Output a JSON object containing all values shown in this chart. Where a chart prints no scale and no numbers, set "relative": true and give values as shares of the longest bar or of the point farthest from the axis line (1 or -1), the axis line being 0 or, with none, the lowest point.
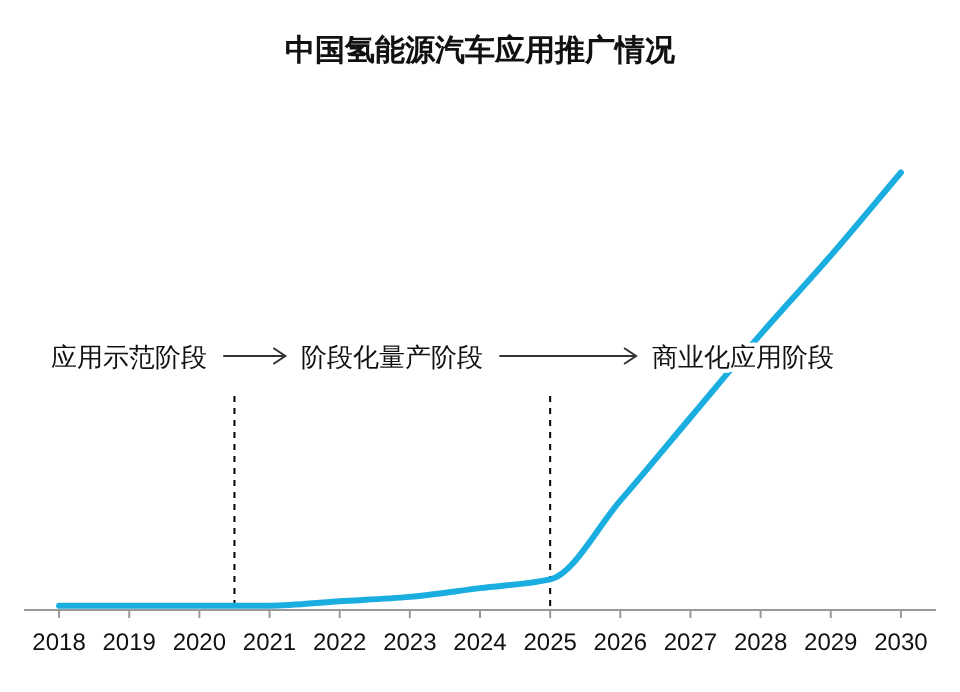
{
  "chart_data": {
    "type": "line",
    "title": "中国氢能源汽车应用推广情况",
    "relative": true,
    "x": [
      2018,
      2019,
      2020,
      2021,
      2022,
      2023,
      2024,
      2025,
      2026,
      2027,
      2028,
      2029,
      2030
    ],
    "xlim": [
      2017.5,
      2030.5
    ],
    "xticks": [
      2018,
      2019,
      2020,
      2021,
      2022,
      2023,
      2024,
      2025,
      2026,
      2027,
      2028,
      2029,
      2030
    ],
    "series": [
      {
        "color": "#1aaee0",
        "values": [
          0.01,
          0.01,
          0.01,
          0.01,
          0.02,
          0.03,
          0.05,
          0.07,
          0.25,
          0.44,
          0.63,
          0.81,
          1
        ]
      }
    ],
    "ref_lines": [
      {
        "axis": "x",
        "value": 2020.5,
        "color": "#000000",
        "line_style": "dashed"
      },
      {
        "axis": "x",
        "value": 2025,
        "color": "#000000",
        "line_style": "dashed"
      }
    ],
    "annotations": [
      "应用示范阶段",
      "阶段化量产阶段",
      "商业化应用阶段"
    ],
    "grid": false,
    "marker": "none",
    "line_style": "solid"
  }
}
